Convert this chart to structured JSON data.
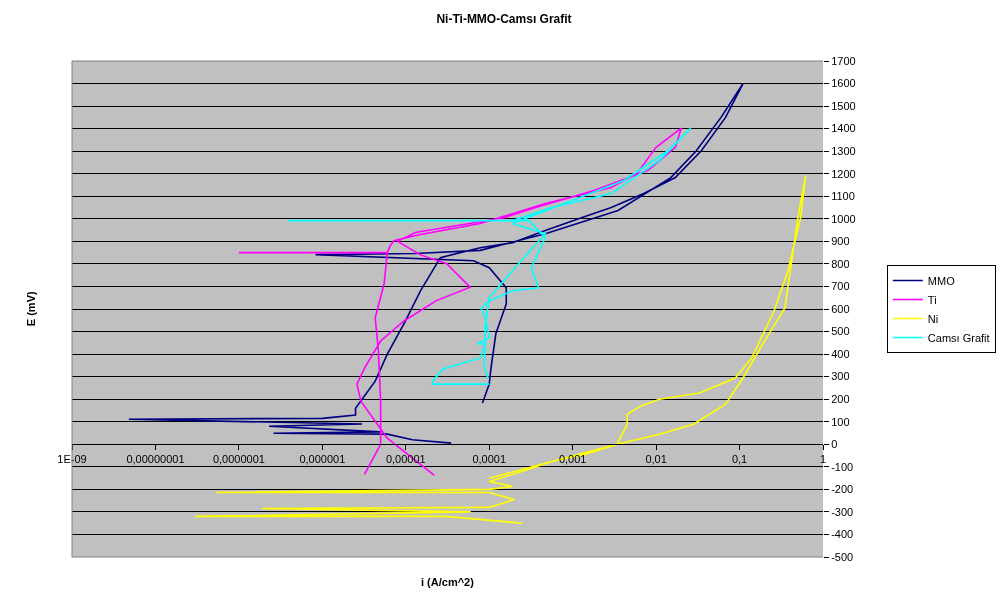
{
  "chart_data": {
    "type": "line",
    "title": "Ni-Ti-MMO-Camsı Grafit",
    "xlabel": "i (A/cm^2)",
    "ylabel": "E (mV)",
    "log": "x",
    "grid": "y",
    "legend": "right",
    "marker": "none",
    "line_style": "solid",
    "xlim": [
      1e-09,
      1
    ],
    "xticks": [
      {
        "value": 1e-09,
        "label": "1E-09"
      },
      {
        "value": 1e-08,
        "label": "0,00000001"
      },
      {
        "value": 1e-07,
        "label": "0,0000001"
      },
      {
        "value": 1e-06,
        "label": "0,000001"
      },
      {
        "value": 1e-05,
        "label": "0,00001"
      },
      {
        "value": 0.0001,
        "label": "0,0001"
      },
      {
        "value": 0.001,
        "label": "0,001"
      },
      {
        "value": 0.01,
        "label": "0,01"
      },
      {
        "value": 0.1,
        "label": "0,1"
      },
      1
    ],
    "ylim": [
      -500,
      1700
    ],
    "yticks": [
      -500,
      -400,
      -300,
      -200,
      -100,
      0,
      100,
      200,
      300,
      400,
      500,
      600,
      700,
      800,
      900,
      1000,
      1100,
      1200,
      1300,
      1400,
      1500,
      1600,
      1700
    ],
    "series": [
      {
        "name": "MMO",
        "color": "#000080",
        "x": [
          3.5e-05,
          1.2e-05,
          6e-06,
          2.6e-07,
          5e-06,
          2.3e-07,
          3e-06,
          4.8e-09,
          1e-06,
          2.5e-06,
          2.5e-06,
          4.3e-06,
          6e-06,
          9.5e-06,
          1.5e-05,
          2.6e-05,
          7.8e-05,
          0.00019,
          0.00047,
          0.0012,
          0.0029,
          0.0071,
          0.017,
          0.035,
          0.068,
          0.11,
          0.06,
          0.03,
          0.015,
          0.0035,
          0.00047,
          7.8e-05,
          1.3e-05,
          8.3e-07,
          6.5e-05,
          0.0001,
          0.00016,
          0.00016,
          0.00012,
          0.000105,
          0.0001,
          8.3e-05
        ],
        "values": [
          5,
          20,
          45,
          49,
          55,
          80,
          90,
          111,
          115,
          130,
          160,
          280,
          400,
          534,
          680,
          828,
          872,
          894,
          948,
          1001,
          1050,
          1112,
          1183,
          1303,
          1450,
          1600,
          1450,
          1300,
          1183,
          1037,
          934,
          860,
          846,
          841,
          814,
          783,
          694,
          623,
          490,
          338,
          267,
          183
        ]
      },
      {
        "name": "Ti",
        "color": "#ff00ff",
        "x": [
          3.2e-06,
          5e-06,
          5e-06,
          4.7e-06,
          4.3e-06,
          5.5e-06,
          6e-06,
          1e-07,
          6e-06,
          6.5e-06,
          7.2e-06,
          1.3e-05,
          7.8e-05,
          0.00047,
          0.0029,
          0.0059,
          0.01,
          0.02,
          0.017,
          0.008,
          0.0018,
          0.00036,
          0.00015,
          1.3e-05,
          8e-06,
          1.5e-05,
          3.1e-05,
          5.9e-05,
          2.3e-05,
          9.5e-06,
          5e-06,
          3.2e-06,
          2.6e-06,
          2.9e-06,
          6e-06,
          2.2e-05
        ],
        "values": [
          -133,
          0,
          191,
          414,
          561,
          712,
          850,
          850,
          850,
          880,
          903,
          926,
          979,
          1068,
          1139,
          1201,
          1317,
          1402,
          1317,
          1215,
          1126,
          1050,
          1005,
          939,
          900,
          840,
          801,
          697,
          636,
          547,
          458,
          338,
          267,
          191,
          27,
          -138
        ]
      },
      {
        "name": "Ni",
        "color": "#ffff00",
        "x": [
          0.00025,
          3e-05,
          3e-08,
          6e-05,
          1.9e-07,
          0.0001,
          0.0002,
          0.0001,
          5.4e-08,
          0.0001,
          0.00019,
          0.0001,
          0.00025,
          0.00056,
          0.0014,
          0.0034,
          0.0045,
          0.0045,
          0.0065,
          0.011,
          0.033,
          0.089,
          0.14,
          0.26,
          0.38,
          0.54,
          0.62,
          0.5,
          0.35,
          0.2,
          0.11,
          0.068,
          0.028,
          0.011,
          0.0034,
          0.00056,
          0.0001
        ],
        "values": [
          -350,
          -320,
          -320,
          -300,
          -285,
          -280,
          -245,
          -214,
          -214,
          -200,
          -187,
          -165,
          -120,
          -76,
          -45,
          0,
          89,
          133,
          169,
          200,
          227,
          294,
          383,
          592,
          770,
          1006,
          1193,
          1006,
          605,
          459,
          294,
          178,
          89,
          44,
          0,
          -76,
          -151
        ]
      },
      {
        "name": "Camsı Grafit",
        "color": "#00ffff",
        "x": [
          0.0001,
          2.1e-05,
          2.1e-05,
          2.8e-05,
          7.8e-05,
          9e-05,
          7.2e-05,
          0.0001,
          9e-05,
          8e-05,
          0.0001,
          0.00019,
          0.00039,
          0.00032,
          0.00047,
          0.00039,
          0.0003,
          3.9e-07,
          0.00019,
          0.00056,
          0.0029,
          0.011,
          0.026,
          0.014,
          0.0041,
          0.00019,
          0.00047,
          0.00019,
          0.0001,
          9e-05,
          8.7e-05,
          9.8e-05
        ],
        "values": [
          267,
          267,
          280,
          334,
          383,
          445,
          445,
          472,
          561,
          601,
          636,
          681,
          694,
          783,
          917,
          948,
          992,
          992,
          992,
          1050,
          1112,
          1259,
          1402,
          1303,
          1170,
          979,
          934,
          770,
          650,
          534,
          338,
          290
        ]
      }
    ]
  }
}
